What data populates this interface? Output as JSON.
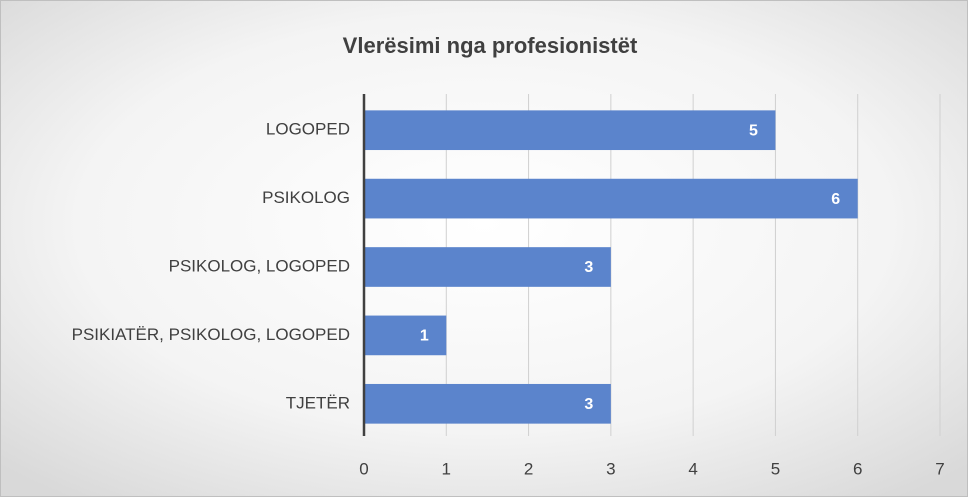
{
  "chart_data": {
    "type": "bar",
    "orientation": "horizontal",
    "title": "Vlerësimi nga profesionistët",
    "categories": [
      "LOGOPED",
      "PSIKOLOG",
      "PSIKOLOG, LOGOPED",
      "PSIKIATËR, PSIKOLOG, LOGOPED",
      "TJETËR"
    ],
    "values": [
      5,
      6,
      3,
      1,
      3
    ],
    "color": "#5b84cc",
    "xlim": [
      0,
      7
    ],
    "xticks": [
      0,
      1,
      2,
      3,
      4,
      5,
      6,
      7
    ],
    "grid": true
  }
}
